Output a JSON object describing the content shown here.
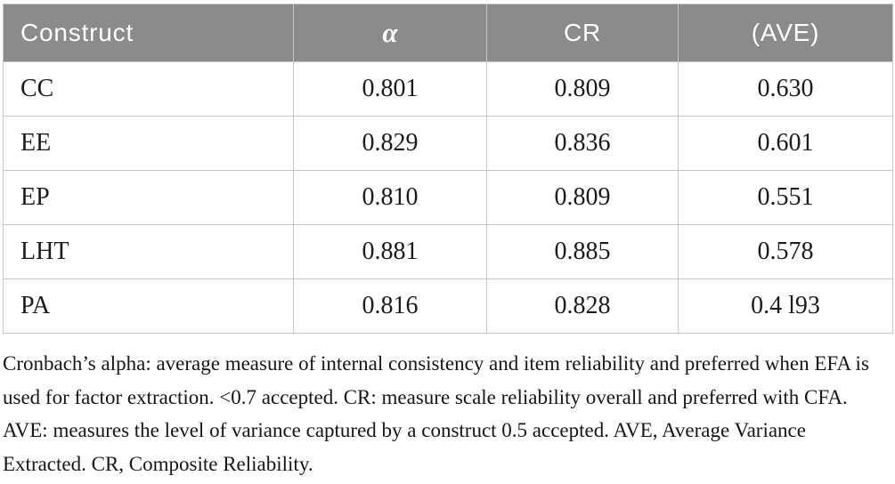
{
  "table": {
    "columns": [
      {
        "label": "Construct"
      },
      {
        "label": "α"
      },
      {
        "label": "CR"
      },
      {
        "label": "(AVE)"
      }
    ],
    "rows": [
      {
        "construct": "CC",
        "alpha": "0.801",
        "cr": "0.809",
        "ave": "0.630"
      },
      {
        "construct": "EE",
        "alpha": "0.829",
        "cr": "0.836",
        "ave": "0.601"
      },
      {
        "construct": "EP",
        "alpha": "0.810",
        "cr": "0.809",
        "ave": "0.551"
      },
      {
        "construct": "LHT",
        "alpha": "0.881",
        "cr": "0.885",
        "ave": "0.578"
      },
      {
        "construct": "PA",
        "alpha": "0.816",
        "cr": "0.828",
        "ave": "0.4 l93"
      }
    ]
  },
  "footnote": "Cronbach’s alpha: average measure of internal consistency and item reliability and preferred when EFA is used for factor extraction. <0.7 accepted. CR: measure scale reliability overall and preferred with CFA. AVE: measures the level of variance captured by a construct 0.5 accepted. AVE, Average Variance Extracted. CR, Composite Reliability.",
  "colors": {
    "header_bg": "#8b8b8b",
    "header_text": "#ffffff",
    "grid_line": "#c6c6c6",
    "body_text": "#1b1b1b"
  }
}
